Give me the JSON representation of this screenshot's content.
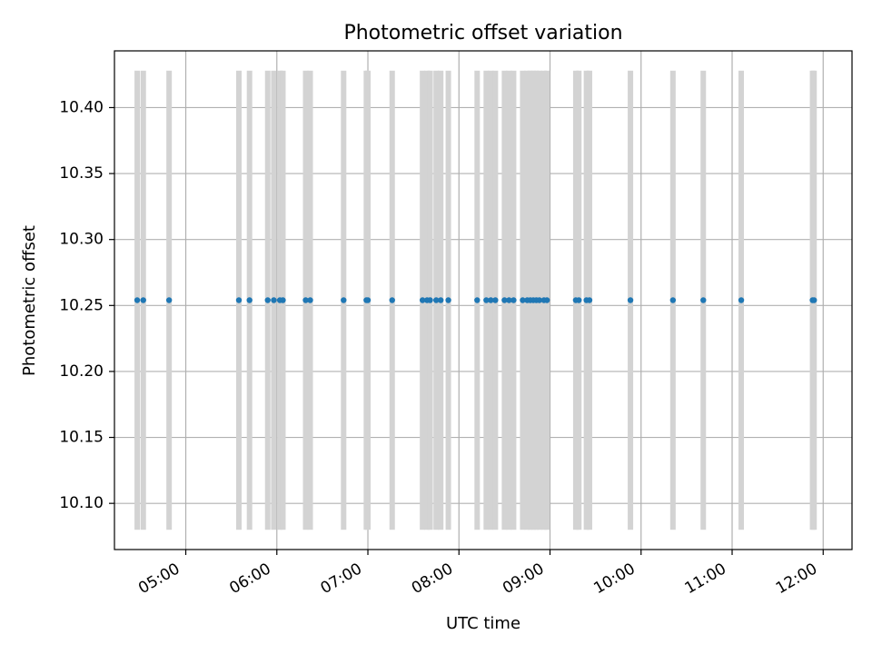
{
  "chart_data": {
    "type": "scatter",
    "title": "Photometric offset variation",
    "xlabel": "UTC time",
    "ylabel": "Photometric offset",
    "xlim": [
      "04:13",
      "12:19"
    ],
    "ylim": [
      10.065,
      10.443
    ],
    "grid": true,
    "x_ticks": [
      "05:00",
      "06:00",
      "07:00",
      "08:00",
      "09:00",
      "10:00",
      "11:00",
      "12:00"
    ],
    "y_ticks": [
      10.1,
      10.15,
      10.2,
      10.25,
      10.3,
      10.35,
      10.4
    ],
    "y_tick_labels": [
      "10.10",
      "10.15",
      "10.20",
      "10.25",
      "10.30",
      "10.35",
      "10.40"
    ],
    "band_range": [
      10.08,
      10.428
    ],
    "band_color": "#d3d3d3",
    "point_color": "#1f77b4",
    "points": [
      {
        "x": "04:28",
        "y": 10.254
      },
      {
        "x": "04:32",
        "y": 10.254
      },
      {
        "x": "04:49",
        "y": 10.254
      },
      {
        "x": "05:35",
        "y": 10.254
      },
      {
        "x": "05:42",
        "y": 10.254
      },
      {
        "x": "05:54",
        "y": 10.254
      },
      {
        "x": "05:58",
        "y": 10.254
      },
      {
        "x": "06:02",
        "y": 10.254
      },
      {
        "x": "06:04",
        "y": 10.254
      },
      {
        "x": "06:19",
        "y": 10.254
      },
      {
        "x": "06:22",
        "y": 10.254
      },
      {
        "x": "06:44",
        "y": 10.254
      },
      {
        "x": "06:59",
        "y": 10.254
      },
      {
        "x": "07:00",
        "y": 10.254
      },
      {
        "x": "07:16",
        "y": 10.254
      },
      {
        "x": "07:36",
        "y": 10.254
      },
      {
        "x": "07:39",
        "y": 10.254
      },
      {
        "x": "07:41",
        "y": 10.254
      },
      {
        "x": "07:45",
        "y": 10.254
      },
      {
        "x": "07:48",
        "y": 10.254
      },
      {
        "x": "07:53",
        "y": 10.254
      },
      {
        "x": "08:12",
        "y": 10.254
      },
      {
        "x": "08:18",
        "y": 10.254
      },
      {
        "x": "08:21",
        "y": 10.254
      },
      {
        "x": "08:24",
        "y": 10.254
      },
      {
        "x": "08:30",
        "y": 10.254
      },
      {
        "x": "08:33",
        "y": 10.254
      },
      {
        "x": "08:36",
        "y": 10.254
      },
      {
        "x": "08:42",
        "y": 10.254
      },
      {
        "x": "08:45",
        "y": 10.254
      },
      {
        "x": "08:47",
        "y": 10.254
      },
      {
        "x": "08:49",
        "y": 10.254
      },
      {
        "x": "08:51",
        "y": 10.254
      },
      {
        "x": "08:53",
        "y": 10.254
      },
      {
        "x": "08:56",
        "y": 10.254
      },
      {
        "x": "08:58",
        "y": 10.254
      },
      {
        "x": "09:17",
        "y": 10.254
      },
      {
        "x": "09:19",
        "y": 10.254
      },
      {
        "x": "09:24",
        "y": 10.254
      },
      {
        "x": "09:26",
        "y": 10.254
      },
      {
        "x": "09:53",
        "y": 10.254
      },
      {
        "x": "10:21",
        "y": 10.254
      },
      {
        "x": "10:41",
        "y": 10.254
      },
      {
        "x": "11:06",
        "y": 10.254
      },
      {
        "x": "11:53",
        "y": 10.254
      },
      {
        "x": "11:54",
        "y": 10.254
      }
    ]
  }
}
